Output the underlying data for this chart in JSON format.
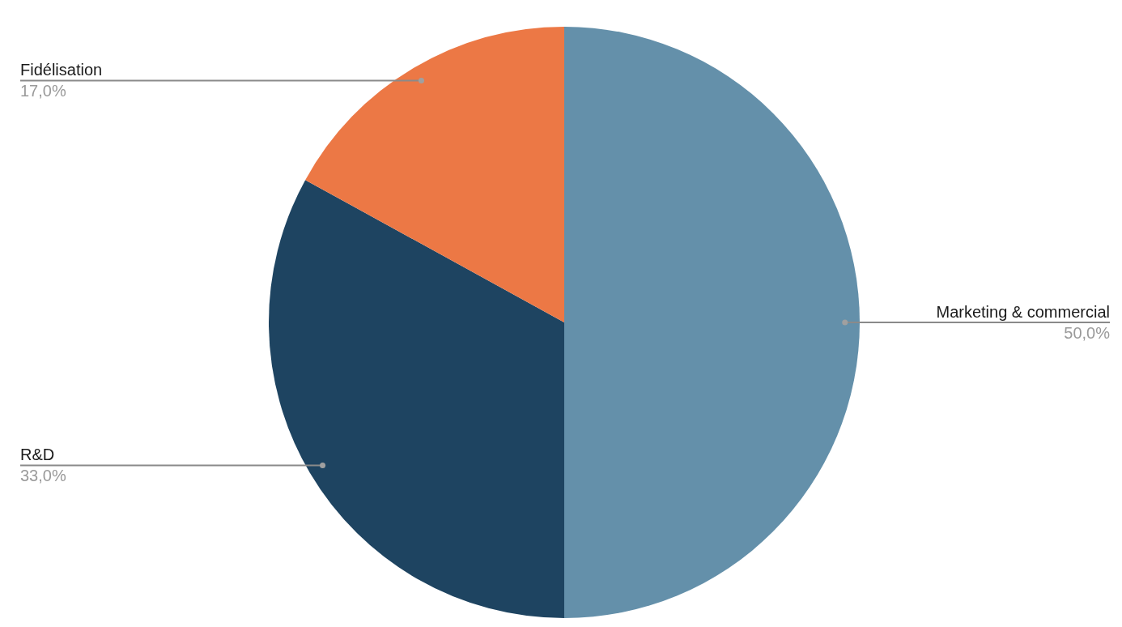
{
  "chart_data": {
    "type": "pie",
    "categories": [
      "Marketing & commercial",
      "R&D",
      "Fidélisation"
    ],
    "values": [
      50,
      33,
      17
    ],
    "colors": [
      "#6490aa",
      "#1e4461",
      "#ec7845"
    ],
    "value_labels": [
      "50,0%",
      "33,0%",
      "17,0%"
    ],
    "legend": false
  }
}
